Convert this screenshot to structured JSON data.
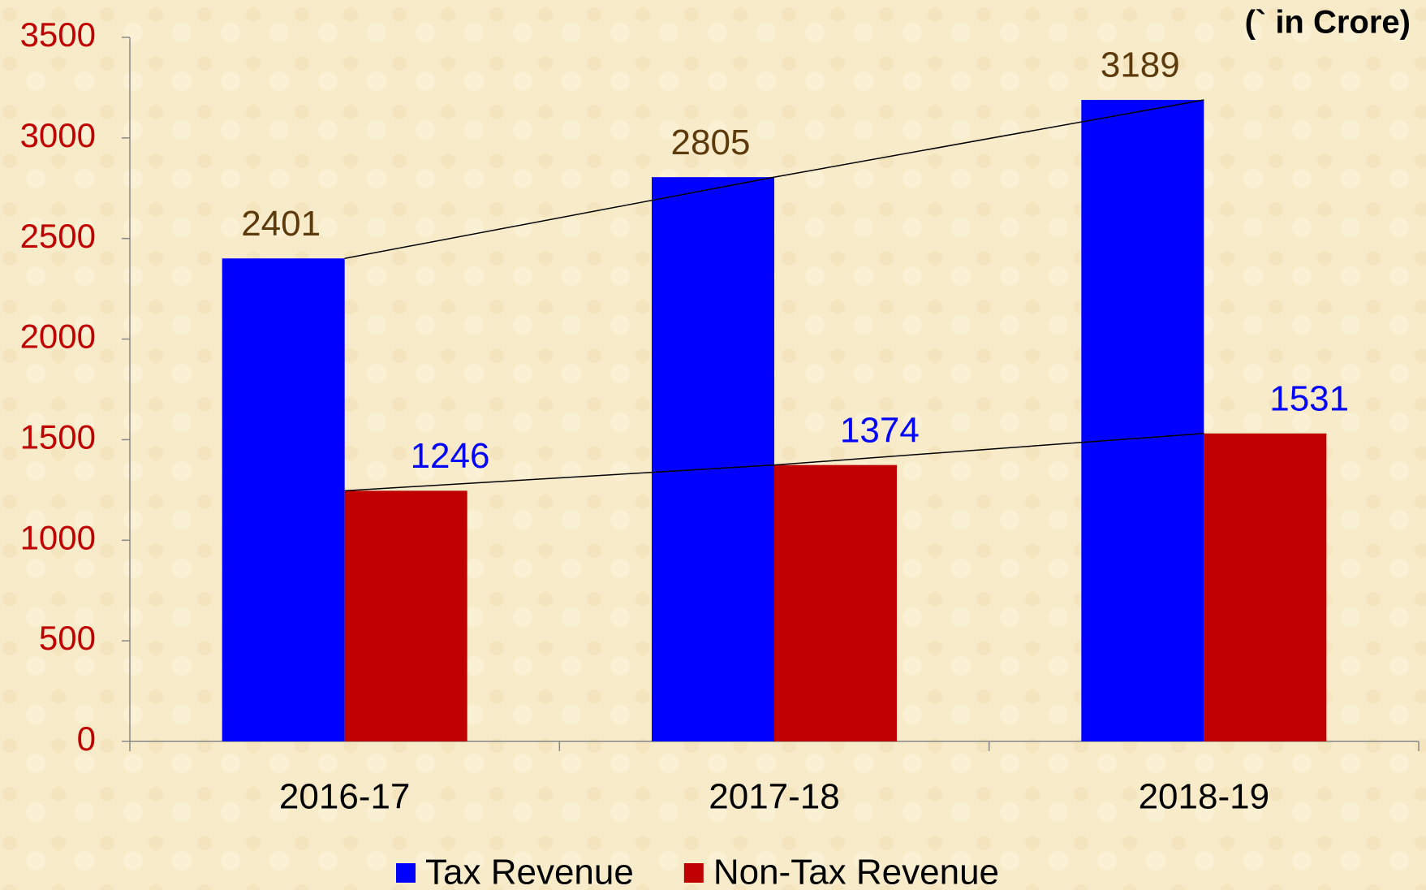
{
  "chart_data": {
    "type": "bar",
    "unit_label": "(` in Crore)",
    "categories": [
      "2016-17",
      "2017-18",
      "2018-19"
    ],
    "series": [
      {
        "name": "Tax Revenue",
        "color": "#0000ff",
        "label_color": "#5c3a0c",
        "values": [
          2401,
          2805,
          3189
        ]
      },
      {
        "name": "Non-Tax Revenue",
        "color": "#c00000",
        "label_color": "#0000ff",
        "values": [
          1246,
          1374,
          1531
        ]
      }
    ],
    "ylim": [
      0,
      3500
    ],
    "yticks": [
      0,
      500,
      1000,
      1500,
      2000,
      2500,
      3000,
      3500
    ],
    "trend_lines": true,
    "legend": "bottom"
  }
}
